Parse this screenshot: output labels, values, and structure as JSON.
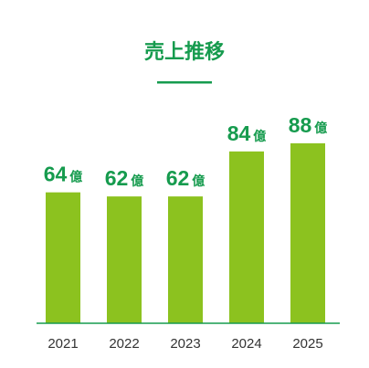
{
  "colors": {
    "bar": "#8cc21f",
    "accent": "#169b4e",
    "axis": "#169b4e",
    "tick_text": "#333333"
  },
  "chart_data": {
    "type": "bar",
    "title": "売上推移",
    "categories": [
      "2021",
      "2022",
      "2023",
      "2024",
      "2025"
    ],
    "values": [
      64,
      62,
      62,
      84,
      88
    ],
    "value_unit": "億",
    "ylim": [
      0,
      100
    ],
    "grid": false,
    "legend": "none"
  }
}
